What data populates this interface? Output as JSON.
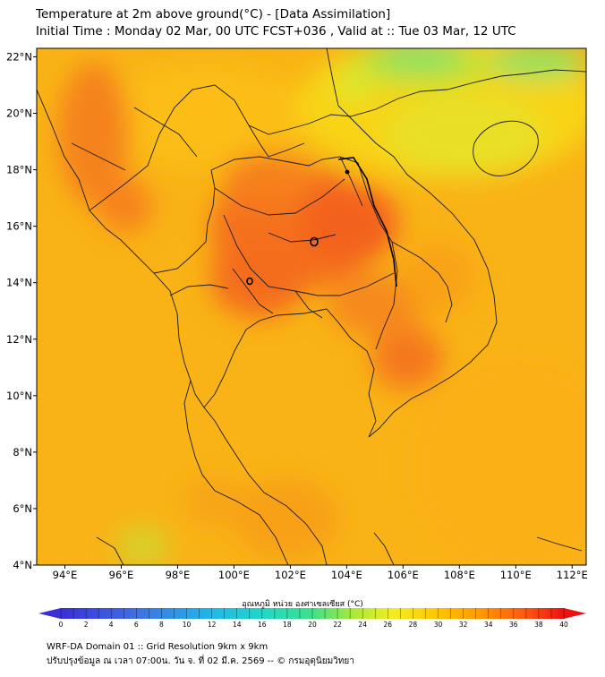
{
  "title_line1": "Temperature at 2m above ground(°C) - [Data Assimilation]",
  "title_line2": "Initial Time : Monday 02 Mar, 00 UTC FCST+036 , Valid at :: Tue 03 Mar, 12 UTC",
  "map": {
    "lon_ticks": [
      "94°E",
      "96°E",
      "98°E",
      "100°E",
      "102°E",
      "104°E",
      "106°E",
      "108°E",
      "110°E",
      "112°E"
    ],
    "lat_ticks": [
      "22°N",
      "20°N",
      "18°N",
      "16°N",
      "14°N",
      "12°N",
      "10°N",
      "8°N",
      "6°N",
      "4°N"
    ],
    "lon_range": [
      93.0,
      112.5
    ],
    "lat_range": [
      4.0,
      22.3
    ]
  },
  "colorbar": {
    "title": "อุณหภูมิ หน่วย องศาเซลเซียส (°C)",
    "min": 0,
    "max": 40,
    "tick_labels": [
      "0",
      "2",
      "4",
      "6",
      "8",
      "10",
      "12",
      "14",
      "16",
      "18",
      "20",
      "22",
      "24",
      "26",
      "28",
      "30",
      "32",
      "34",
      "36",
      "38",
      "40"
    ]
  },
  "footer_line1": "WRF-DA Domain 01 :: Grid Resolution 9km x 9km",
  "footer_line2": "ปรับปรุงข้อมูล ณ เวลา 07:00น. วัน จ. ที่ 02 มี.ค. 2569 -- © กรมอุตุนิยมวิทยา"
}
